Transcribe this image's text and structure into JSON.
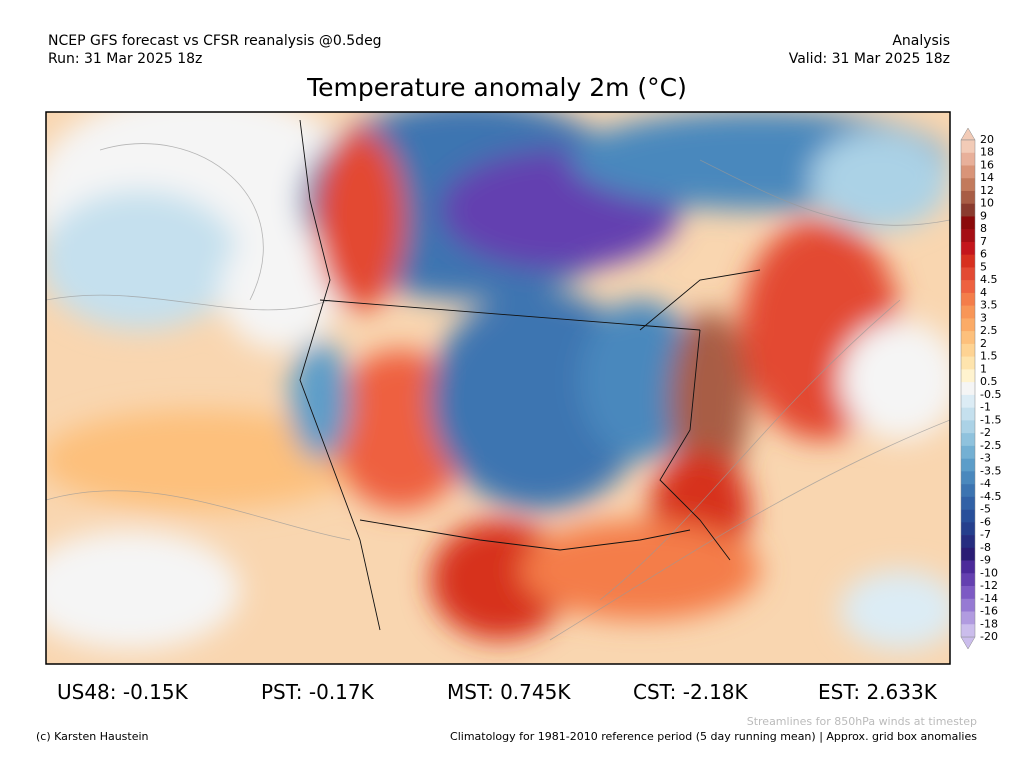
{
  "header": {
    "left": [
      "NCEP GFS forecast vs CFSR reanalysis @0.5deg",
      "Run: 31 Mar 2025 18z"
    ],
    "right": [
      "Analysis",
      "Valid: 31 Mar 2025 18z"
    ],
    "title": "Temperature anomaly 2m (°C)"
  },
  "colorbar": {
    "labels": [
      "20",
      "18",
      "16",
      "14",
      "12",
      "10",
      "9",
      "8",
      "7",
      "6",
      "5",
      "4.5",
      "4",
      "3.5",
      "3",
      "2.5",
      "2",
      "1.5",
      "1",
      "0.5",
      "-0.5",
      "-1",
      "-1.5",
      "-2",
      "-2.5",
      "-3",
      "-3.5",
      "-4",
      "-4.5",
      "-5",
      "-6",
      "-7",
      "-8",
      "-9",
      "-10",
      "-12",
      "-14",
      "-16",
      "-18",
      "-20"
    ],
    "colors": [
      "#f2cbb7",
      "#e8b09a",
      "#d99478",
      "#c27a5c",
      "#a85d45",
      "#8a3b2e",
      "#8b0a0a",
      "#a50f15",
      "#c4161c",
      "#d7301f",
      "#e34a33",
      "#ee6140",
      "#f47d4a",
      "#f89657",
      "#fbab67",
      "#fdc07c",
      "#fed393",
      "#fee4ad",
      "#fff3cf",
      "#f5f5f5",
      "#dcecf5",
      "#c5e0ee",
      "#abd2e6",
      "#8fc2dd",
      "#74b0d3",
      "#5c9dc9",
      "#4a88bd",
      "#3c74b1",
      "#3161a6",
      "#284f9a",
      "#253f8d",
      "#262d80",
      "#2a1c74",
      "#4b2a9a",
      "#6440b0",
      "#7d5ac4",
      "#967ad3",
      "#b19be0",
      "#cbbdec"
    ]
  },
  "stats": [
    "US48: -0.15K",
    "PST: -0.17K",
    "MST: 0.745K",
    "CST: -2.18K",
    "EST: 2.633K"
  ],
  "footer": {
    "credit": "(c) Karsten Haustein",
    "streamlines": "Streamlines for 850hPa winds at timestep",
    "climatology": "Climatology for 1981-2010 reference period (5 day running mean) | Approx. grid box anomalies"
  }
}
